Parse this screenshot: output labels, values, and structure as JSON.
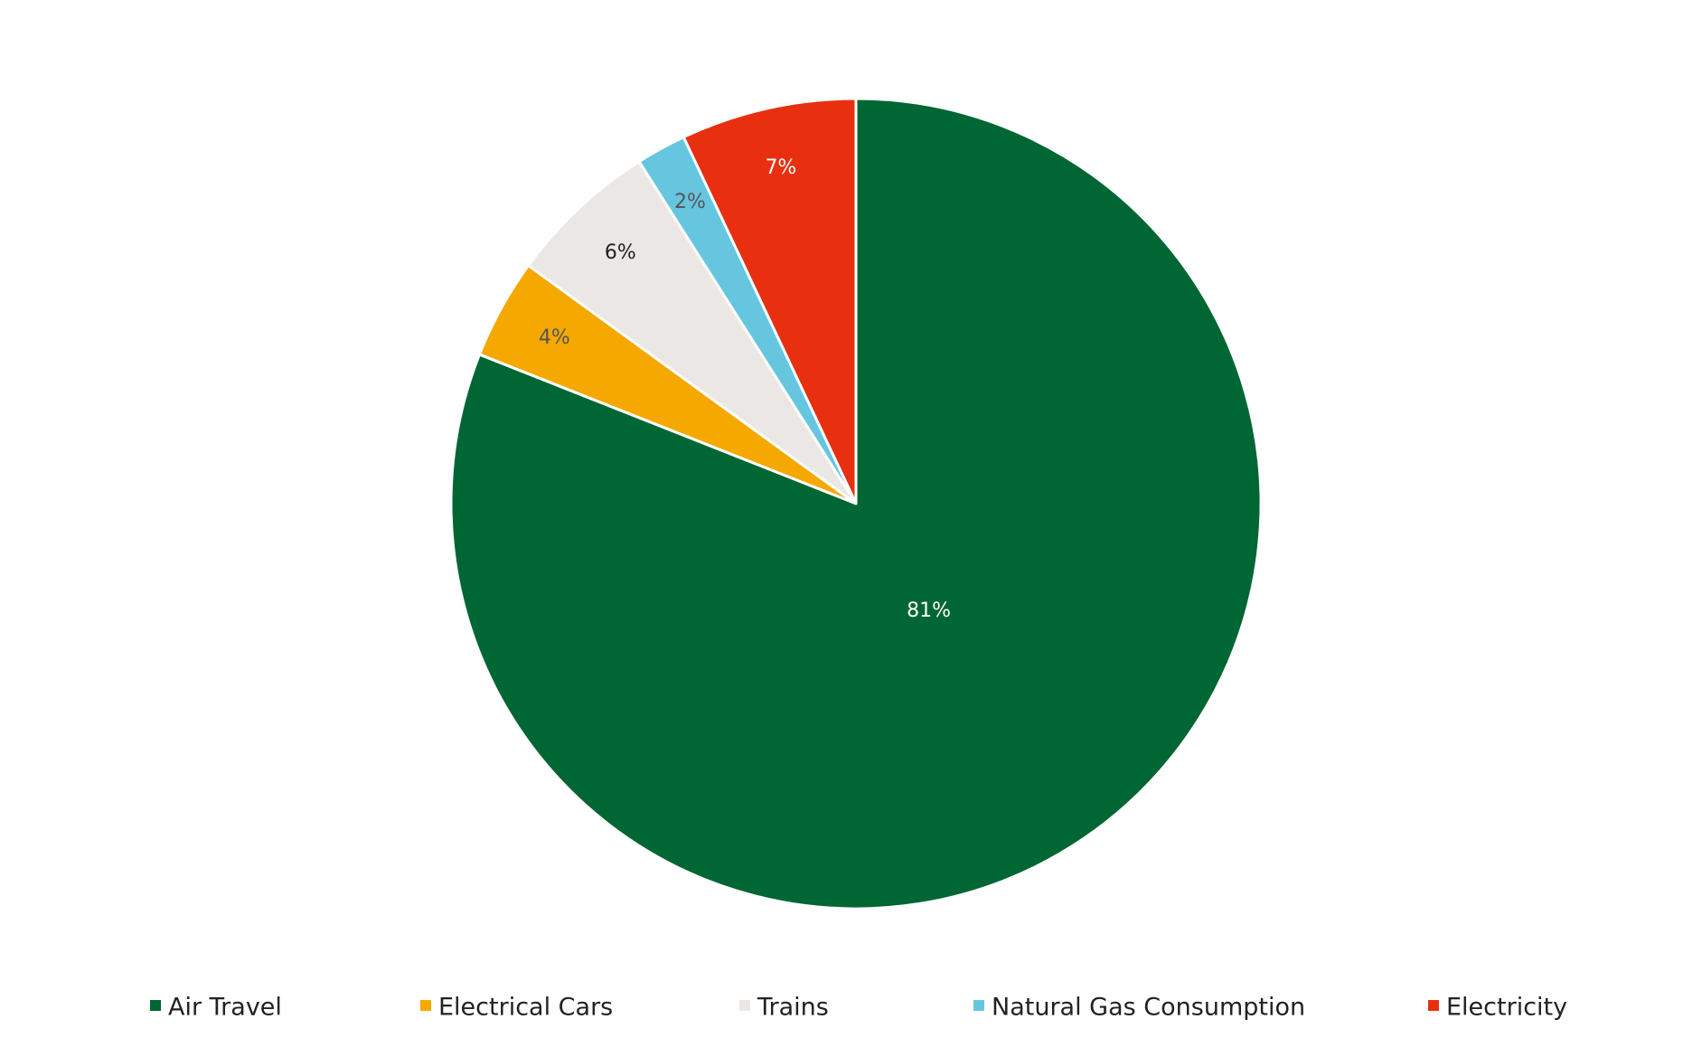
{
  "chart_data": {
    "type": "pie",
    "title": "",
    "start_angle": "12 o'clock",
    "direction": "clockwise",
    "legend_position": "bottom",
    "labels": [
      "Air Travel",
      "Electrical Cars",
      "Trains",
      "Natural Gas Consumption",
      "Electricity"
    ],
    "values": [
      81,
      4,
      6,
      2,
      7
    ],
    "value_labels": [
      "81%",
      "4%",
      "6%",
      "2%",
      "7%"
    ],
    "colors": [
      "#006633",
      "#F5A800",
      "#EBE7E5",
      "#66C6E0",
      "#E83010"
    ],
    "label_colors": [
      "#FFFFFF",
      "#555555",
      "#222222",
      "#555555",
      "#FFFFFF"
    ]
  }
}
